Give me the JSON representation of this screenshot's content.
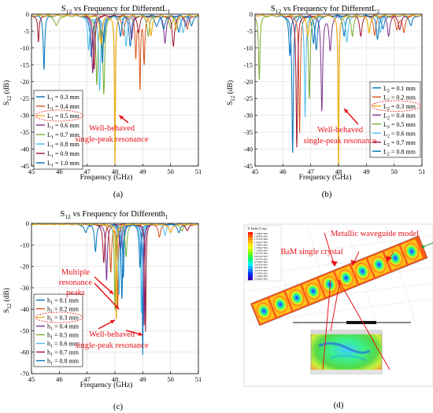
{
  "panels": [
    {
      "chart_data": {
        "type": "line",
        "title": "S12 vs Frequency for DifferentL1",
        "title_main": "S",
        "title_sub": "12",
        "title_mid": " vs Frequency for Different",
        "title_var": "L",
        "title_var_sub": "1",
        "xlabel": "Frequency (GHz)",
        "ylabel_main": "S",
        "ylabel_sub": "12",
        "ylabel_unit": " (dB)",
        "xlim": [
          45,
          51
        ],
        "ylim": [
          -45,
          0
        ],
        "xticks": [
          45,
          46,
          47,
          48,
          49,
          50,
          51
        ],
        "yticks": [
          0,
          -5,
          -10,
          -15,
          -20,
          -25,
          -30,
          -35,
          -40,
          -45
        ],
        "grid": true,
        "legend": "bottom-left",
        "annotation": [
          "Well-behaved",
          "single-peak resonance"
        ],
        "annotation_point": [
          48.15,
          -30
        ],
        "highlight_index": 2,
        "series": [
          {
            "name": "L1 = 0.3 mm",
            "label_main": "L",
            "label_sub": "1",
            "label_val": " = 0.3 mm",
            "color": "#0072BD",
            "dips": [
              [
                45.45,
                16,
                0.03
              ],
              [
                47.15,
                12,
                0.05
              ],
              [
                47.6,
                8,
                0.05
              ],
              [
                48.55,
                9,
                0.05
              ],
              [
                49.5,
                3,
                0.08
              ],
              [
                50.3,
                5,
                0.06
              ]
            ]
          },
          {
            "name": "L1 = 0.4 mm",
            "label_main": "L",
            "label_sub": "1",
            "label_val": " = 0.4 mm",
            "color": "#D95319",
            "dips": [
              [
                48.75,
                12,
                0.03
              ],
              [
                48.9,
                21,
                0.025
              ],
              [
                49.05,
                14,
                0.03
              ],
              [
                48.3,
                6,
                0.05
              ],
              [
                50.6,
                4,
                0.06
              ]
            ]
          },
          {
            "name": "L1 = 0.5 mm",
            "label_main": "L",
            "label_sub": "1",
            "label_val": " = 0.5 mm",
            "color": "#EDB120",
            "dips": [
              [
                48.0,
                44,
                0.02
              ],
              [
                47.5,
                8,
                0.05
              ],
              [
                49.3,
                6,
                0.05
              ],
              [
                50.2,
                4,
                0.05
              ]
            ]
          },
          {
            "name": "L1 = 0.6 mm",
            "label_main": "L",
            "label_sub": "1",
            "label_val": " = 0.6 mm",
            "color": "#7E2F8E",
            "dips": [
              [
                47.2,
                17,
                0.04
              ],
              [
                48.6,
                7,
                0.05
              ],
              [
                49.8,
                8,
                0.05
              ],
              [
                50.55,
                3,
                0.06
              ]
            ]
          },
          {
            "name": "L1 = 0.7 mm",
            "label_main": "L",
            "label_sub": "1",
            "label_val": " = 0.7 mm",
            "color": "#77AC30",
            "dips": [
              [
                45.9,
                3,
                0.08
              ],
              [
                47.35,
                20,
                0.04
              ],
              [
                47.6,
                23,
                0.04
              ],
              [
                49.2,
                6,
                0.05
              ],
              [
                50.0,
                4,
                0.06
              ]
            ]
          },
          {
            "name": "L1 = 0.8 mm",
            "label_main": "L",
            "label_sub": "1",
            "label_val": " = 0.8 mm",
            "color": "#4DBEEE",
            "dips": [
              [
                47.05,
                10,
                0.04
              ],
              [
                47.45,
                22,
                0.04
              ],
              [
                48.4,
                9,
                0.05
              ],
              [
                50.45,
                5,
                0.06
              ]
            ]
          },
          {
            "name": "L1 = 0.9 mm",
            "label_main": "L",
            "label_sub": "1",
            "label_val": " = 0.9 mm",
            "color": "#A2142F",
            "dips": [
              [
                45.25,
                8,
                0.03
              ],
              [
                47.25,
                16,
                0.04
              ],
              [
                48.85,
                5,
                0.05
              ],
              [
                50.1,
                9,
                0.05
              ]
            ]
          },
          {
            "name": "L1 = 1.0 mm",
            "label_main": "L",
            "label_sub": "1",
            "label_val": " = 1.0 mm",
            "color": "#0072BD",
            "dips": [
              [
                47.55,
                14,
                0.04
              ],
              [
                48.2,
                6,
                0.05
              ],
              [
                49.75,
                4,
                0.06
              ],
              [
                50.75,
                3,
                0.06
              ]
            ]
          }
        ]
      }
    },
    {
      "chart_data": {
        "type": "line",
        "title": "S12 vs Frequency for DifferentL2",
        "title_main": "S",
        "title_sub": "12",
        "title_mid": " vs Frequency for Different",
        "title_var": "L",
        "title_var_sub": "2",
        "xlabel": "Frequency (GHz)",
        "ylabel_main": "S",
        "ylabel_sub": "12",
        "ylabel_unit": " (dB)",
        "xlim": [
          45,
          51
        ],
        "ylim": [
          -45,
          0
        ],
        "xticks": [
          45,
          46,
          47,
          48,
          49,
          50,
          51
        ],
        "yticks": [
          0,
          -5,
          -10,
          -15,
          -20,
          -25,
          -30,
          -35,
          -40,
          -45
        ],
        "grid": true,
        "legend": "right",
        "annotation": [
          "Well-behaved",
          "single-peak resonance"
        ],
        "annotation_point": [
          48.2,
          -28
        ],
        "highlight_index": 2,
        "series": [
          {
            "name": "L2 = 0.1 mm",
            "label_main": "L",
            "label_sub": "2",
            "label_val": " = 0.1 mm",
            "color": "#0072BD",
            "dips": [
              [
                46.35,
                41,
                0.03
              ],
              [
                47.1,
                8,
                0.05
              ],
              [
                48.2,
                6,
                0.05
              ],
              [
                49.6,
                4,
                0.06
              ]
            ]
          },
          {
            "name": "L2 = 0.2 mm",
            "label_main": "L",
            "label_sub": "2",
            "label_val": " = 0.2 mm",
            "color": "#D95319",
            "dips": [
              [
                46.6,
                35,
                0.03
              ],
              [
                49.3,
                6,
                0.05
              ],
              [
                50.1,
                4,
                0.06
              ],
              [
                50.35,
                5,
                0.05
              ]
            ]
          },
          {
            "name": "L2 = 0.3 mm",
            "label_main": "L",
            "label_sub": "2",
            "label_val": " = 0.3 mm",
            "color": "#EDB120",
            "dips": [
              [
                48.0,
                45,
                0.02
              ],
              [
                46.9,
                6,
                0.05
              ],
              [
                49.1,
                5,
                0.05
              ]
            ]
          },
          {
            "name": "L2 = 0.4 mm",
            "label_main": "L",
            "label_sub": "2",
            "label_val": " = 0.4 mm",
            "color": "#7E2F8E",
            "dips": [
              [
                47.4,
                28,
                0.035
              ],
              [
                47.7,
                10,
                0.05
              ],
              [
                49.8,
                6,
                0.05
              ]
            ]
          },
          {
            "name": "L2 = 0.5 mm",
            "label_main": "L",
            "label_sub": "2",
            "label_val": " = 0.5 mm",
            "color": "#77AC30",
            "dips": [
              [
                45.15,
                19,
                0.03
              ],
              [
                46.95,
                25,
                0.035
              ],
              [
                48.5,
                6,
                0.05
              ]
            ]
          },
          {
            "name": "L2 = 0.6 mm",
            "label_main": "L",
            "label_sub": "2",
            "label_val": " = 0.6 mm",
            "color": "#4DBEEE",
            "dips": [
              [
                46.8,
                30,
                0.03
              ],
              [
                48.3,
                8,
                0.05
              ],
              [
                49.5,
                5,
                0.05
              ]
            ]
          },
          {
            "name": "L2 = 0.7 mm",
            "label_main": "L",
            "label_sub": "2",
            "label_val": " = 0.7 mm",
            "color": "#A2142F",
            "dips": [
              [
                46.5,
                39,
                0.03
              ],
              [
                48.8,
                6,
                0.05
              ],
              [
                50.2,
                4,
                0.06
              ]
            ]
          },
          {
            "name": "L2 = 0.8 mm",
            "label_main": "L",
            "label_sub": "2",
            "label_val": " = 0.8 mm",
            "color": "#0072BD",
            "dips": [
              [
                46.25,
                12,
                0.04
              ],
              [
                47.2,
                10,
                0.05
              ],
              [
                49.4,
                7,
                0.05
              ],
              [
                50.6,
                3,
                0.06
              ]
            ]
          }
        ]
      }
    },
    {
      "chart_data": {
        "type": "line",
        "title": "S12 vs Frequency for Differenth1",
        "title_main": "S",
        "title_sub": "12",
        "title_mid": " vs Frequency for Different",
        "title_var": "h",
        "title_var_sub": "1",
        "xlabel": "Frequency (GHz)",
        "ylabel_main": "S",
        "ylabel_sub": "12",
        "ylabel_unit": " (dB)",
        "xlim": [
          45,
          51
        ],
        "ylim": [
          -70,
          0
        ],
        "xticks": [
          45,
          46,
          47,
          48,
          49,
          50,
          51
        ],
        "yticks": [
          0,
          -10,
          -20,
          -30,
          -40,
          -50,
          -60,
          -70
        ],
        "grid": true,
        "legend": "bottom-left",
        "annotations": [
          {
            "lines": [
              "Multiple",
              "resonance",
              "peaks"
            ],
            "points": [
              [
                47.95,
                -33
              ],
              [
                48.15,
                -40
              ]
            ]
          },
          {
            "lines": [
              "Well-behaved",
              "single-peak  resonance"
            ],
            "points": [
              [
                48.0,
                -45
              ],
              [
                49.0,
                -52
              ]
            ]
          }
        ],
        "highlight_index": 2,
        "series": [
          {
            "name": "h1 = 0.1 mm",
            "label_main": "h",
            "label_sub": "1",
            "label_val": " = 0.1 mm",
            "color": "#0072BD",
            "dips": [
              [
                47.3,
                13,
                0.04
              ],
              [
                48.3,
                25,
                0.03
              ],
              [
                49.0,
                61,
                0.02
              ],
              [
                50.3,
                4,
                0.06
              ]
            ]
          },
          {
            "name": "h1 = 0.2 mm",
            "label_main": "h",
            "label_sub": "1",
            "label_val": " = 0.2 mm",
            "color": "#D95319",
            "dips": [
              [
                47.85,
                22,
                0.035
              ],
              [
                48.1,
                38,
                0.025
              ],
              [
                49.6,
                6,
                0.05
              ]
            ]
          },
          {
            "name": "h1 = 0.3 mm",
            "label_main": "h",
            "label_sub": "1",
            "label_val": " = 0.3 mm",
            "color": "#EDB120",
            "dips": [
              [
                48.05,
                45,
                0.02
              ],
              [
                50.0,
                4,
                0.06
              ]
            ]
          },
          {
            "name": "h1 = 0.4 mm",
            "label_main": "h",
            "label_sub": "1",
            "label_val": " = 0.4 mm",
            "color": "#7E2F8E",
            "dips": [
              [
                47.7,
                26,
                0.035
              ],
              [
                48.2,
                12,
                0.05
              ],
              [
                49.05,
                48,
                0.02
              ]
            ]
          },
          {
            "name": "h1 = 0.5 mm",
            "label_main": "h",
            "label_sub": "1",
            "label_val": " = 0.5 mm",
            "color": "#77AC30",
            "dips": [
              [
                48.0,
                40,
                0.025
              ],
              [
                48.4,
                15,
                0.04
              ],
              [
                50.4,
                3,
                0.06
              ]
            ]
          },
          {
            "name": "h1 = 0.6 mm",
            "label_main": "h",
            "label_sub": "1",
            "label_val": " = 0.6 mm",
            "color": "#4DBEEE",
            "dips": [
              [
                48.15,
                33,
                0.03
              ],
              [
                48.95,
                42,
                0.025
              ],
              [
                49.8,
                5,
                0.05
              ]
            ]
          },
          {
            "name": "h1 = 0.7 mm",
            "label_main": "h",
            "label_sub": "1",
            "label_val": " = 0.7 mm",
            "color": "#A2142F",
            "dips": [
              [
                47.6,
                18,
                0.04
              ],
              [
                49.1,
                50,
                0.02
              ],
              [
                50.6,
                3,
                0.06
              ]
            ]
          },
          {
            "name": "h1 = 0.8 mm",
            "label_main": "h",
            "label_sub": "1",
            "label_val": " = 0.8 mm",
            "color": "#0072BD",
            "dips": [
              [
                46.95,
                4,
                0.06
              ],
              [
                48.25,
                35,
                0.03
              ],
              [
                48.9,
                20,
                0.035
              ]
            ]
          }
        ]
      }
    }
  ],
  "sim_panel": {
    "label_waveguide": "Metallic waveguide model",
    "label_crystal": "BaM single crystal",
    "colorbar_title": "E Field [V/m]",
    "colorbar_values": [
      "1.7983e+004",
      "1.6859e+004",
      "1.5735e+004",
      "1.4611e+004",
      "1.3487e+004",
      "1.2363e+004",
      "1.1239e+004",
      "1.0115e+004",
      "8.9913e+003",
      "7.8674e+003",
      "6.7435e+003",
      "5.6195e+003",
      "4.4956e+003",
      "3.3717e+003",
      "2.2478e+003",
      "1.1239e+003",
      "0.0000e+000"
    ],
    "annotation_color": "#e8141a"
  },
  "captions": [
    "(a)",
    "(b)",
    "(c)",
    "(d)"
  ]
}
